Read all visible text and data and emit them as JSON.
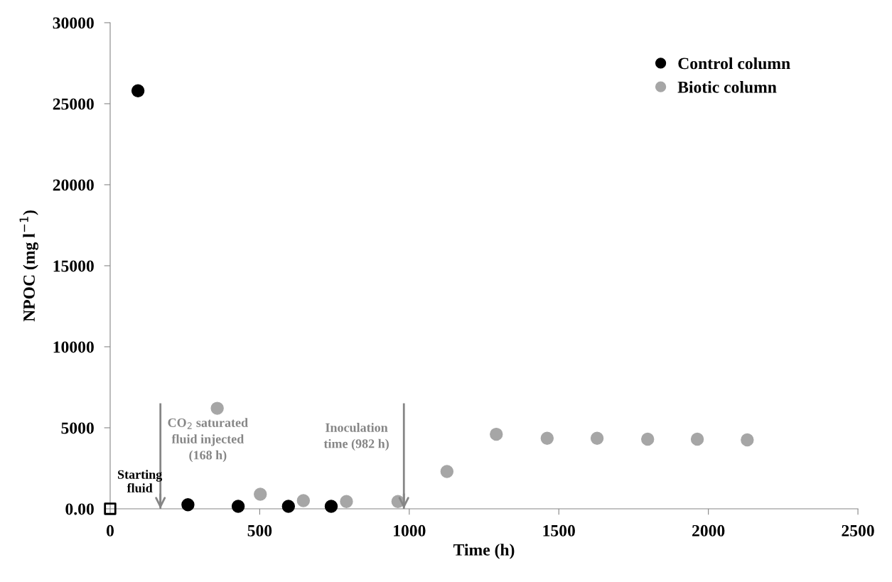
{
  "chart_data": {
    "type": "scatter",
    "xlabel": "Time (h)",
    "ylabel": "NPOC (mg l$^{−1}$)",
    "xlim": [
      0,
      2500
    ],
    "ylim": [
      0,
      30000
    ],
    "xticks": [
      0,
      500,
      1000,
      1500,
      2000,
      2500
    ],
    "yticks": [
      {
        "value": 0,
        "label": "0.00"
      },
      5000,
      10000,
      15000,
      20000,
      25000,
      30000
    ],
    "grid": false,
    "legend": "top right",
    "marker": "circle",
    "series": [
      {
        "name": "Control column",
        "color": "#000000",
        "x": [
          93,
          260,
          428,
          596,
          739
        ],
        "values": [
          25800,
          250,
          150,
          150,
          150
        ]
      },
      {
        "name": "Biotic column",
        "color": "#a6a6a6",
        "x": [
          358,
          502,
          646,
          790,
          962,
          1126,
          1291,
          1461,
          1628,
          1797,
          1963,
          2130
        ],
        "values": [
          6200,
          900,
          500,
          450,
          450,
          2300,
          4600,
          4350,
          4350,
          4300,
          4300,
          4250
        ]
      },
      {
        "color": "#000000",
        "marker": "square",
        "x": [
          0
        ],
        "values": [
          0
        ]
      }
    ],
    "annotations": [
      {
        "text": "Starting\nfluid",
        "x": 0,
        "y": 0
      }
    ],
    "ref_lines": [
      {
        "axis": "x",
        "value": 168,
        "label": "CO$_{2}$ saturated\nfluid injected\n(168 h)",
        "color": "#868686"
      },
      {
        "axis": "x",
        "value": 982,
        "label": "Inoculation\ntime (982 h)",
        "color": "#868686"
      }
    ]
  }
}
